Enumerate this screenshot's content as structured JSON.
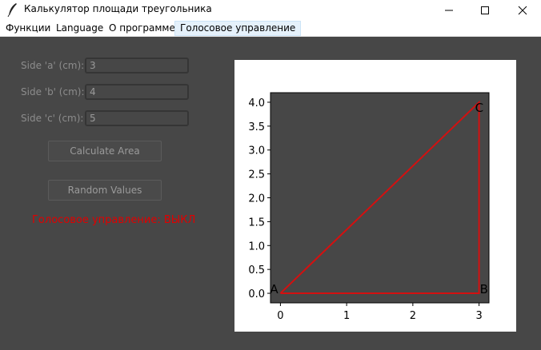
{
  "window": {
    "title": "Калькулятор площади треугольника",
    "icon": "feather-icon"
  },
  "menu": [
    {
      "label": "Функции"
    },
    {
      "label": "Language"
    },
    {
      "label": "О программе"
    },
    {
      "label": "Голосовое управление"
    }
  ],
  "form": {
    "side_a": {
      "label": "Side 'a' (cm):",
      "value": "3"
    },
    "side_b": {
      "label": "Side 'b' (cm):",
      "value": "4"
    },
    "side_c": {
      "label": "Side 'c' (cm):",
      "value": "5"
    },
    "calculate_label": "Calculate Area",
    "random_label": "Random Values"
  },
  "voice_status": "Голосовое управление: ВЫКЛ",
  "colors": {
    "background": "#474747",
    "plot_background": "#474747",
    "triangle_stroke": "#d41010",
    "status_text": "#e00000"
  },
  "chart_data": {
    "type": "line",
    "series": [
      {
        "x": [
          0,
          3,
          3,
          0
        ],
        "y": [
          0,
          0,
          4,
          0
        ]
      }
    ],
    "vertices": [
      {
        "label": "A",
        "x": 0,
        "y": 0
      },
      {
        "label": "B",
        "x": 3,
        "y": 0
      },
      {
        "label": "C",
        "x": 3,
        "y": 4
      }
    ],
    "xticks": [
      "0",
      "1",
      "2",
      "3"
    ],
    "yticks": [
      "0.0",
      "0.5",
      "1.0",
      "1.5",
      "2.0",
      "2.5",
      "3.0",
      "3.5",
      "4.0"
    ],
    "xlim": [
      -0.15,
      3.15
    ],
    "ylim": [
      -0.2,
      4.2
    ],
    "title": "",
    "xlabel": "",
    "ylabel": "",
    "grid": false
  }
}
